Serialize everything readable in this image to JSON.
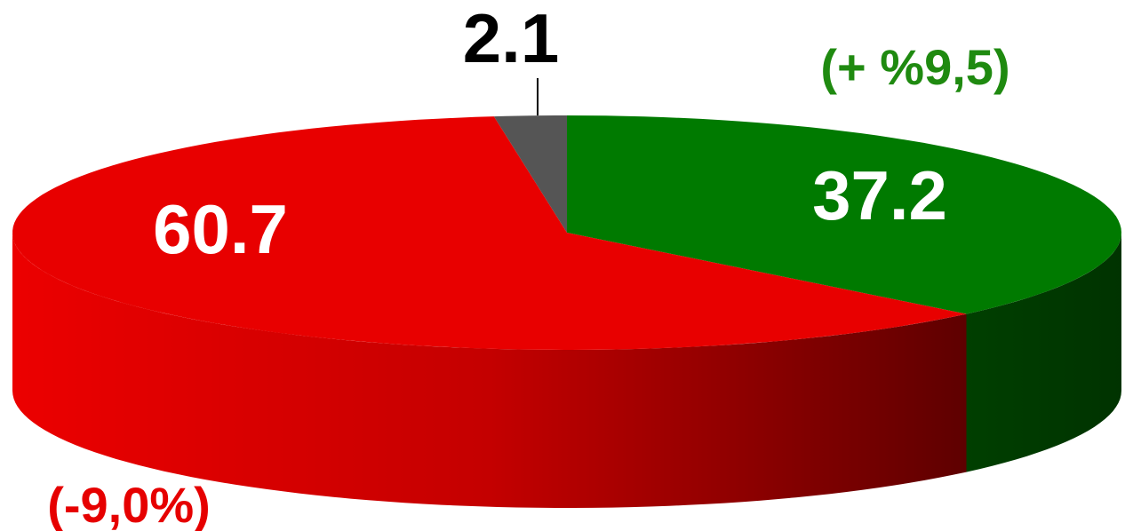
{
  "chart_data": {
    "type": "pie",
    "title": "",
    "slices": [
      {
        "value": 37.2,
        "label": "37.2",
        "color": "#007a00",
        "change": "(+ %9,5)",
        "change_color": "#1f8a10"
      },
      {
        "value": 60.7,
        "label": "60.7",
        "color": "#e80000",
        "change": "(-9,0%)",
        "change_color": "#e60000"
      },
      {
        "value": 2.1,
        "label": "2.1",
        "color": "#555555"
      }
    ],
    "style": "3d-tilted",
    "legend": "none"
  }
}
